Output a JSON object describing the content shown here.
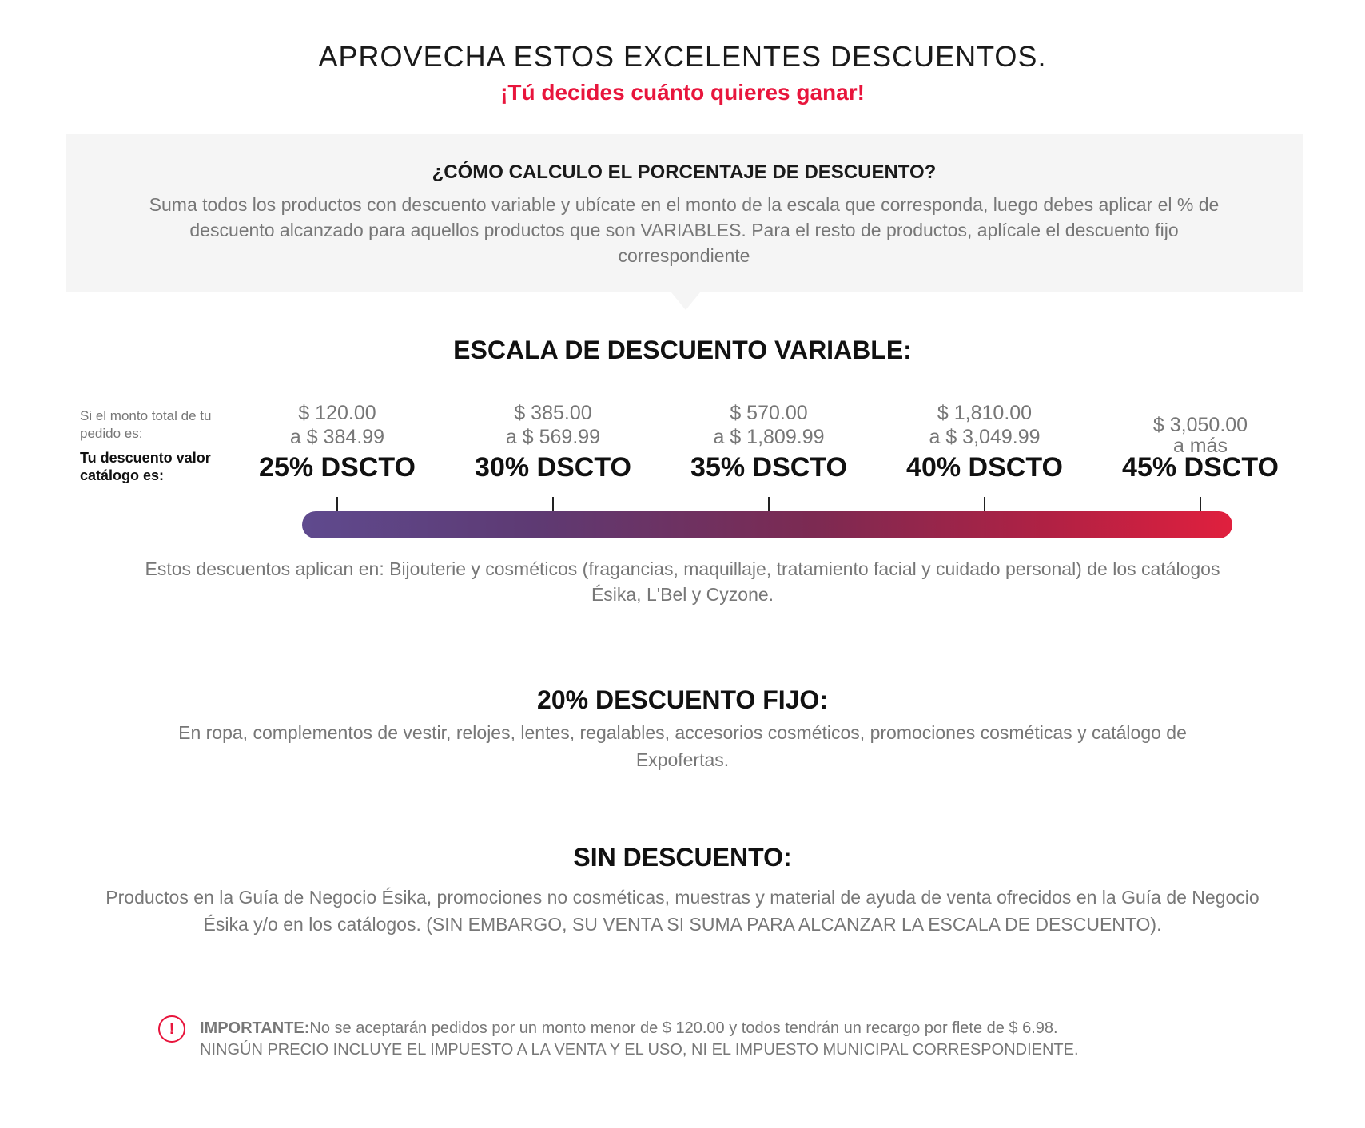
{
  "hero": {
    "title": "APROVECHA ESTOS EXCELENTES DESCUENTOS.",
    "subtitle": "¡Tú decides cuánto quieres ganar!"
  },
  "info": {
    "title": "¿CÓMO CALCULO EL PORCENTAJE DE DESCUENTO?",
    "text": "Suma todos los productos con descuento variable y ubícate en el monto de la escala que corresponda, luego debes aplicar el % de descuento alcanzado para aquellos productos que son VARIABLES. Para el resto de productos, aplícale el descuento fijo correspondiente"
  },
  "scale": {
    "title": "ESCALA DE DESCUENTO VARIABLE:",
    "if_label": "Si el monto total de tu pedido es:",
    "discount_label": "Tu descuento valor catálogo es:",
    "tiers": [
      {
        "from": "$ 120.00",
        "to": "a $ 384.99",
        "pct": "25% DSCTO"
      },
      {
        "from": "$ 385.00",
        "to": "a $ 569.99",
        "pct": "30% DSCTO"
      },
      {
        "from": "$ 570.00",
        "to": "a $ 1,809.99",
        "pct": "35% DSCTO"
      },
      {
        "from": "$ 1,810.00",
        "to": "a $ 3,049.99",
        "pct": "40% DSCTO"
      },
      {
        "from": "$ 3,050.00",
        "to": "a más",
        "pct": "45% DSCTO"
      }
    ],
    "gradient_colors": [
      "#5f4a8e",
      "#e0203e"
    ],
    "applies_text": "Estos descuentos aplican en: Bijouterie y cosméticos (fragancias, maquillaje, tratamiento facial y cuidado personal) de los catálogos Ésika, L'Bel y Cyzone."
  },
  "fixed": {
    "title": "20% DESCUENTO FIJO:",
    "text": "En ropa, complementos de vestir, relojes, lentes, regalables, accesorios cosméticos, promociones cosméticas y catálogo de Expofertas."
  },
  "none": {
    "title": "SIN DESCUENTO:",
    "text": "Productos en la Guía de Negocio Ésika, promociones no cosméticas, muestras y material de ayuda de venta ofrecidos en la Guía de Negocio Ésika y/o en los catálogos. (SIN EMBARGO, SU VENTA SI SUMA PARA ALCANZAR LA ESCALA DE DESCUENTO)."
  },
  "important": {
    "icon": "alert-circle-icon",
    "label": "IMPORTANTE:",
    "line1": "No se aceptarán pedidos por un monto menor de $ 120.00 y todos tendrán un recargo por flete de $ 6.98.",
    "line2": "NINGÚN PRECIO INCLUYE EL IMPUESTO A LA VENTA Y EL USO, NI EL IMPUESTO MUNICIPAL CORRESPONDIENTE."
  },
  "colors": {
    "accent": "#e8153c",
    "panel": "#f5f5f5"
  }
}
